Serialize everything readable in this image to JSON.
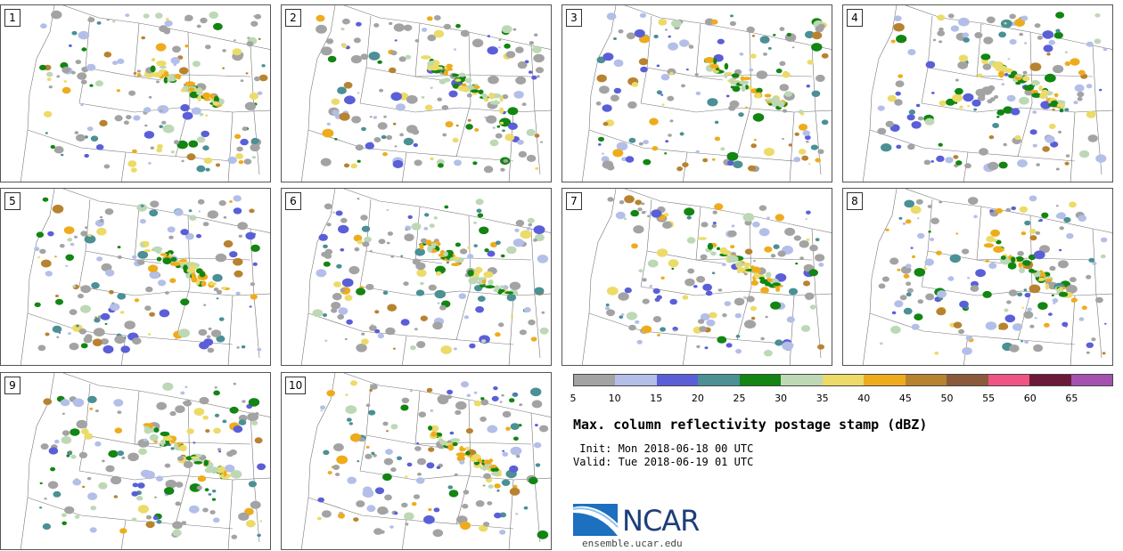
{
  "panels": [
    {
      "label": "1"
    },
    {
      "label": "2"
    },
    {
      "label": "3"
    },
    {
      "label": "4"
    },
    {
      "label": "5"
    },
    {
      "label": "6"
    },
    {
      "label": "7"
    },
    {
      "label": "8"
    },
    {
      "label": "9"
    },
    {
      "label": "10"
    }
  ],
  "colorbar": {
    "ticks": [
      "5",
      "10",
      "15",
      "20",
      "25",
      "30",
      "35",
      "40",
      "45",
      "50",
      "55",
      "60",
      "65"
    ],
    "colors": [
      "#a3a3a3",
      "#b3bfe8",
      "#5a5fd8",
      "#4a9095",
      "#128512",
      "#bdd8b5",
      "#ecdb68",
      "#eeac1c",
      "#b88330",
      "#8b5a3b",
      "#ee5585",
      "#6b1a3a",
      "#a650b0"
    ]
  },
  "title": "Max. column reflectivity postage stamp (dBZ)",
  "init": " Init: Mon 2018-06-18 00 UTC",
  "valid": "Valid: Tue 2018-06-19 01 UTC",
  "logo": {
    "text": "NCAR",
    "colors": {
      "blue": "#1d3f7a",
      "light": "#2f7bc5"
    }
  },
  "site": "ensemble.ucar.edu"
}
